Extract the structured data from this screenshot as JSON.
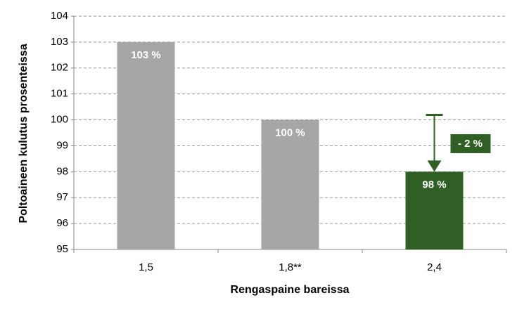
{
  "chart_data": {
    "type": "bar",
    "x_label": "Rengaspaine bareissa",
    "y_label": "Poltoaineen kulutus prosenteissa",
    "categories": [
      "1,5",
      "1,8**",
      "2,4"
    ],
    "values": [
      103,
      100,
      98
    ],
    "value_labels": [
      "103 %",
      "100 %",
      "98 %"
    ],
    "colors": [
      "#a6a6a6",
      "#a6a6a6",
      "#2f5f24"
    ],
    "ylim": [
      95,
      104
    ],
    "yticks": [
      95,
      96,
      97,
      98,
      99,
      100,
      101,
      102,
      103,
      104
    ],
    "grid": true,
    "annotation": {
      "text": "- 2 %",
      "color": "#2f5f24"
    }
  }
}
